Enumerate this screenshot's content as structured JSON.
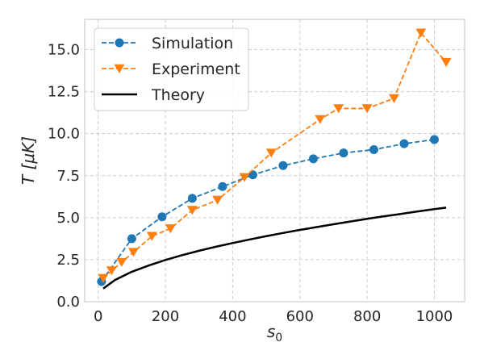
{
  "chart_data": {
    "type": "line",
    "title": "",
    "xlabel": "s",
    "xlabel_sub": "0",
    "ylabel": "T [μK]",
    "xlim": [
      -40,
      1090
    ],
    "ylim": [
      0,
      16.8
    ],
    "xticks": [
      0,
      200,
      400,
      600,
      800,
      1000
    ],
    "yticks": [
      0.0,
      2.5,
      5.0,
      7.5,
      10.0,
      12.5,
      15.0
    ],
    "xtick_labels": [
      "0",
      "200",
      "400",
      "600",
      "800",
      "1000"
    ],
    "ytick_labels": [
      "0.0",
      "2.5",
      "5.0",
      "7.5",
      "10.0",
      "12.5",
      "15.0"
    ],
    "grid": true,
    "legend_position": "top-left",
    "series": [
      {
        "name": "Simulation",
        "color": "#1f77b4",
        "style": "dashed",
        "marker": "circle",
        "x": [
          10,
          100,
          190,
          280,
          370,
          460,
          550,
          640,
          730,
          820,
          910,
          1000
        ],
        "y": [
          1.2,
          3.75,
          5.05,
          6.15,
          6.85,
          7.55,
          8.1,
          8.5,
          8.85,
          9.05,
          9.4,
          9.65
        ]
      },
      {
        "name": "Experiment",
        "color": "#ff7f0e",
        "style": "dashed",
        "marker": "triangle-down",
        "x": [
          15,
          40,
          70,
          105,
          160,
          215,
          280,
          355,
          435,
          515,
          660,
          715,
          800,
          880,
          960,
          1035
        ],
        "y": [
          1.4,
          1.85,
          2.35,
          2.95,
          3.9,
          4.35,
          5.45,
          6.05,
          7.4,
          8.85,
          10.85,
          11.5,
          11.5,
          12.1,
          16.0,
          14.25
        ]
      },
      {
        "name": "Theory",
        "color": "#000000",
        "style": "solid",
        "marker": "none",
        "x": [
          15,
          50,
          100,
          150,
          200,
          250,
          300,
          350,
          400,
          450,
          500,
          550,
          600,
          650,
          700,
          750,
          800,
          850,
          900,
          950,
          1000,
          1035
        ],
        "y": [
          0.78,
          1.29,
          1.78,
          2.15,
          2.48,
          2.77,
          3.03,
          3.27,
          3.49,
          3.7,
          3.9,
          4.09,
          4.27,
          4.44,
          4.61,
          4.77,
          4.93,
          5.08,
          5.22,
          5.37,
          5.51,
          5.6
        ]
      }
    ]
  }
}
